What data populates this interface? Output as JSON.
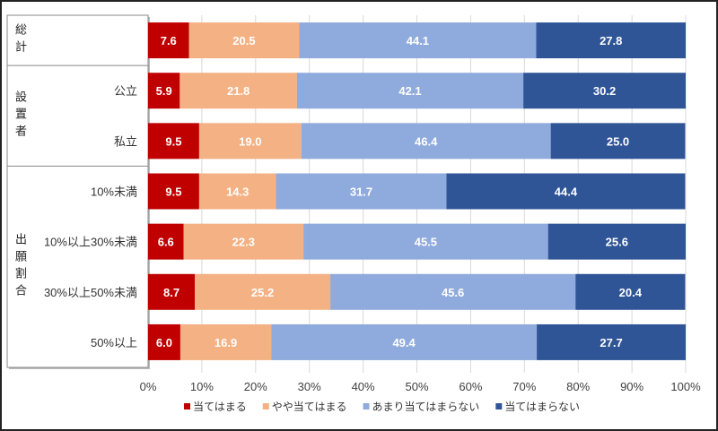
{
  "chart_data": {
    "type": "bar",
    "orientation": "horizontal",
    "stacked": "percent",
    "groups": [
      {
        "label": "総計",
        "rows": [
          0
        ]
      },
      {
        "label": "設置者",
        "rows": [
          1,
          2
        ]
      },
      {
        "label": "出願割合",
        "rows": [
          3,
          4,
          5,
          6
        ]
      }
    ],
    "categories": [
      "",
      "公立",
      "私立",
      "10%未満",
      "10%以上30%未満",
      "30%以上50%未満",
      "50%以上"
    ],
    "series": [
      {
        "name": "当てはまる",
        "color": "#C00000",
        "values": [
          7.6,
          5.9,
          9.5,
          9.5,
          6.6,
          8.7,
          6.0
        ]
      },
      {
        "name": "やや当てはまる",
        "color": "#F4B183",
        "values": [
          20.5,
          21.8,
          19.0,
          14.3,
          22.3,
          25.2,
          16.9
        ]
      },
      {
        "name": "あまり当てはまらない",
        "color": "#8FAADC",
        "values": [
          44.1,
          42.1,
          46.4,
          31.7,
          45.5,
          45.6,
          49.4
        ]
      },
      {
        "name": "当てはまらない",
        "color": "#2F5597",
        "values": [
          27.8,
          30.2,
          25.0,
          44.4,
          25.6,
          20.4,
          27.7
        ]
      }
    ],
    "xlim": [
      0,
      100
    ],
    "xticks": [
      "0%",
      "10%",
      "20%",
      "30%",
      "40%",
      "50%",
      "60%",
      "70%",
      "80%",
      "90%",
      "100%"
    ],
    "grid": true,
    "legend": "bottom"
  }
}
